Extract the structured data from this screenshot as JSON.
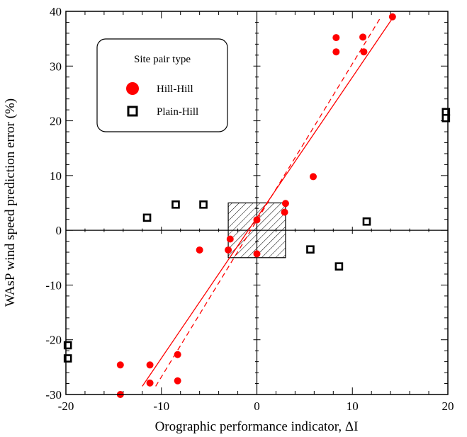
{
  "chart_data": {
    "type": "scatter",
    "title": "",
    "xlabel": "Orographic performance indicator, ΔI",
    "ylabel": "WAsP wind speed prediction error (%)",
    "xlim": [
      -20,
      20
    ],
    "ylim": [
      -30,
      40
    ],
    "x_ticks": [
      -20,
      -10,
      0,
      10,
      20
    ],
    "y_ticks": [
      -30,
      -20,
      -10,
      0,
      10,
      20,
      30,
      40
    ],
    "x_minor_step": 2,
    "y_minor_step": 2,
    "grid": false,
    "zero_lines": true,
    "legend": {
      "title": "Site pair type",
      "position": "top-left",
      "entries": [
        "Hill-Hill",
        "Plain-Hill"
      ]
    },
    "series": [
      {
        "name": "Hill-Hill",
        "marker": "filled-circle",
        "color": "#ff0000",
        "points": [
          [
            -14.3,
            -30.0
          ],
          [
            -14.3,
            -24.6
          ],
          [
            -11.2,
            -27.9
          ],
          [
            -11.2,
            -24.6
          ],
          [
            -8.3,
            -22.7
          ],
          [
            -8.3,
            -27.5
          ],
          [
            -6.0,
            -3.6
          ],
          [
            -3.0,
            -3.6
          ],
          [
            -2.8,
            -1.6
          ],
          [
            0.0,
            1.9
          ],
          [
            0.0,
            -4.3
          ],
          [
            2.9,
            3.3
          ],
          [
            3.0,
            4.9
          ],
          [
            5.9,
            9.8
          ],
          [
            8.3,
            35.2
          ],
          [
            8.3,
            32.6
          ],
          [
            11.1,
            35.3
          ],
          [
            11.2,
            32.6
          ],
          [
            14.2,
            39.0
          ]
        ]
      },
      {
        "name": "Plain-Hill",
        "marker": "open-square",
        "color": "#000000",
        "points": [
          [
            -11.5,
            2.3
          ],
          [
            -8.5,
            4.7
          ],
          [
            -5.6,
            4.7
          ],
          [
            11.5,
            1.6
          ],
          [
            5.6,
            -3.5
          ],
          [
            8.6,
            -6.6
          ],
          [
            19.8,
            21.6
          ],
          [
            19.8,
            20.5
          ],
          [
            -19.8,
            -21.0
          ],
          [
            -19.8,
            -23.4
          ]
        ]
      }
    ],
    "fit_lines": [
      {
        "style": "solid",
        "color": "#ff0000",
        "from": [
          -12.0,
          -28.5
        ],
        "to": [
          14.3,
          39.0
        ]
      },
      {
        "style": "dashed",
        "color": "#ff0000",
        "from": [
          -10.6,
          -28.5
        ],
        "to": [
          13.0,
          39.0
        ]
      }
    ],
    "hatched_region": {
      "x": [
        -3.0,
        3.0
      ],
      "y": [
        -5.0,
        5.0
      ]
    }
  }
}
